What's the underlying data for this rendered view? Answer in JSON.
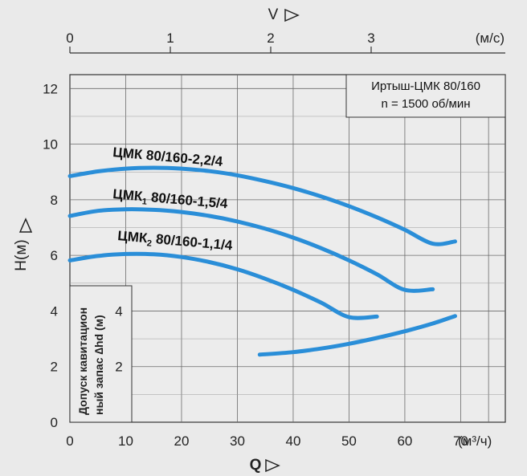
{
  "chart_data": {
    "type": "line",
    "top_axis": {
      "label": "V",
      "unit": "(м/с)",
      "ticks": [
        "0",
        "1",
        "2",
        "3"
      ],
      "values": [
        0,
        1,
        2,
        3
      ]
    },
    "y_axis": {
      "label": "H(м)",
      "ticks": [
        "0",
        "2",
        "4",
        "6",
        "8",
        "10",
        "12"
      ],
      "values": [
        0,
        2,
        4,
        6,
        8,
        10,
        12
      ],
      "ylim": [
        0,
        12.5
      ]
    },
    "x_axis": {
      "label": "Q",
      "unit": "(м³/ч)",
      "ticks": [
        "0",
        "10",
        "20",
        "30",
        "40",
        "50",
        "60",
        "70"
      ],
      "values": [
        0,
        10,
        20,
        30,
        40,
        50,
        60,
        70
      ],
      "xlim": [
        0,
        78
      ]
    },
    "info_box": {
      "line1": "Иртыш-ЦМК 80/160",
      "line2": "n = 1500 об/мин"
    },
    "npsh_axis": {
      "label_line1": "Допуск кавитацион",
      "label_line2": "ный запас",
      "label_symbol": "∆hd",
      "label_unit": "(м)",
      "ticks": [
        "2",
        "4"
      ],
      "values": [
        2,
        4
      ]
    },
    "series": [
      {
        "name_main": "ЦМК 80/160-2,2/4",
        "name_sub": "",
        "name_rest": "",
        "x": [
          0,
          5,
          10,
          15,
          20,
          25,
          30,
          35,
          40,
          45,
          50,
          55,
          60,
          65,
          69
        ],
        "y": [
          8.85,
          9.02,
          9.12,
          9.15,
          9.12,
          9.03,
          8.88,
          8.67,
          8.42,
          8.12,
          7.77,
          7.37,
          6.92,
          6.42,
          6.5
        ]
      },
      {
        "name_main": "ЦМК",
        "name_sub": "1",
        "name_rest": " 80/160-1,5/4",
        "x": [
          0,
          5,
          10,
          15,
          20,
          25,
          30,
          35,
          40,
          45,
          50,
          55,
          60,
          65
        ],
        "y": [
          7.42,
          7.6,
          7.66,
          7.64,
          7.56,
          7.42,
          7.22,
          6.96,
          6.64,
          6.26,
          5.82,
          5.32,
          4.76,
          4.78
        ]
      },
      {
        "name_main": "ЦМК",
        "name_sub": "2",
        "name_rest": " 80/160-1,1/4",
        "x": [
          0,
          5,
          10,
          15,
          20,
          25,
          30,
          35,
          40,
          45,
          50,
          55
        ],
        "y": [
          5.82,
          5.98,
          6.05,
          6.04,
          5.94,
          5.76,
          5.5,
          5.16,
          4.76,
          4.3,
          3.78,
          3.8
        ]
      },
      {
        "name_main": "",
        "name_sub": "",
        "name_rest": "",
        "role": "npsh",
        "x": [
          34,
          40,
          45,
          50,
          55,
          60,
          65,
          69
        ],
        "y": [
          2.43,
          2.52,
          2.65,
          2.82,
          3.03,
          3.27,
          3.55,
          3.82
        ]
      }
    ],
    "grid": true,
    "colors": {
      "curve": "#2a8ed8",
      "background": "#eaeaea",
      "grid": "#555555"
    }
  }
}
